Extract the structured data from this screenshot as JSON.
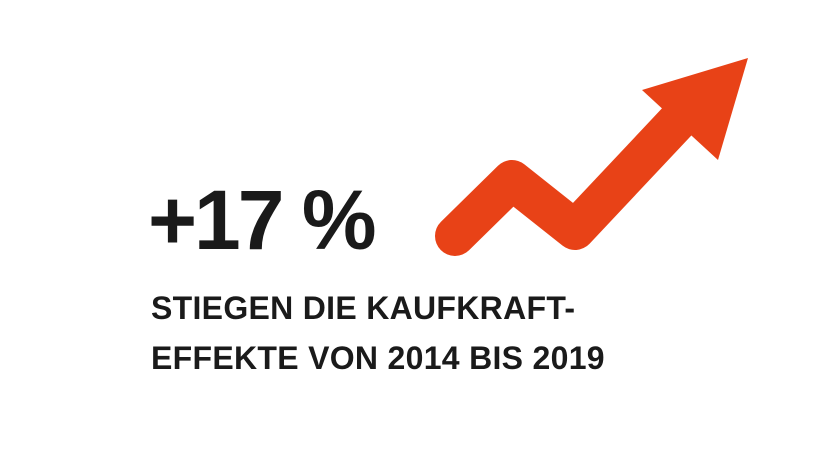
{
  "headline": {
    "value": "+17 %"
  },
  "caption": {
    "line1": "STIEGEN DIE KAUFKRAFT-",
    "line2": "EFFEKTE VON 2014 BIS 2019"
  },
  "colors": {
    "arrow": "#e84217",
    "text": "#1a1a1a",
    "background": "#ffffff"
  },
  "icons": {
    "trend_arrow": "trend-up-arrow-icon"
  }
}
